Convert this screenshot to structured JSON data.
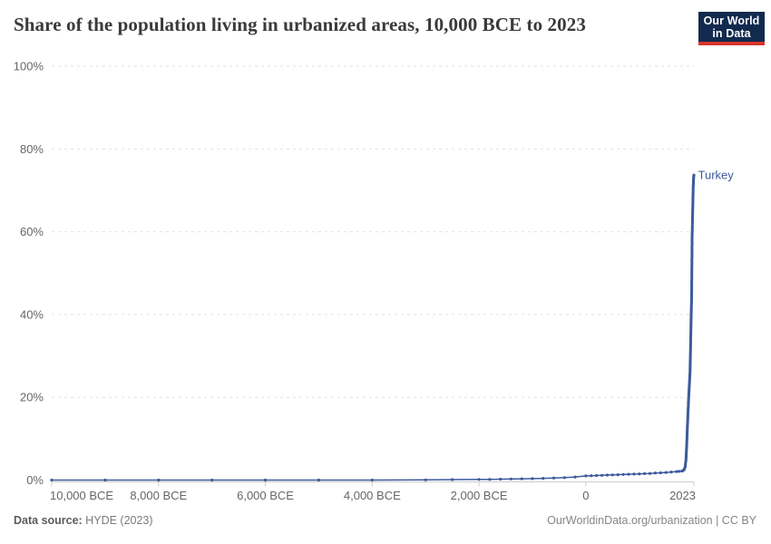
{
  "header": {
    "title": "Share of the population living in urbanized areas, 10,000 BCE to 2023",
    "logo": {
      "line1": "Our World",
      "line2": "in Data"
    }
  },
  "footer": {
    "source_label": "Data source:",
    "source_value": " HYDE (2023)",
    "right_text": "OurWorldinData.org/urbanization | CC BY"
  },
  "colors": {
    "series_blue": "#3d5a9c",
    "grid": "#e2e2e2",
    "axis_line": "#cccccc",
    "tick_text": "#666666",
    "logo_navy": "#132a4f",
    "logo_red": "#d8352a"
  },
  "chart_data": {
    "type": "line",
    "title": "Share of the population living in urbanized areas, 10,000 BCE to 2023",
    "xlabel": "",
    "ylabel": "",
    "xlim": [
      -10000,
      2023
    ],
    "ylim": [
      0,
      100
    ],
    "grid": "dashed-horizontal",
    "legend_position": "end-of-line-label",
    "x_ticks": [
      {
        "v": -10000,
        "label": "10,000 BCE"
      },
      {
        "v": -8000,
        "label": "8,000 BCE"
      },
      {
        "v": -6000,
        "label": "6,000 BCE"
      },
      {
        "v": -4000,
        "label": "4,000 BCE"
      },
      {
        "v": -2000,
        "label": "2,000 BCE"
      },
      {
        "v": 0,
        "label": "0"
      },
      {
        "v": 2023,
        "label": "2023"
      }
    ],
    "y_ticks": [
      {
        "v": 0,
        "label": "0%"
      },
      {
        "v": 20,
        "label": "20%"
      },
      {
        "v": 40,
        "label": "40%"
      },
      {
        "v": 60,
        "label": "60%"
      },
      {
        "v": 80,
        "label": "80%"
      },
      {
        "v": 100,
        "label": "100%"
      }
    ],
    "series": [
      {
        "name": "Turkey",
        "color": "#3d5a9c",
        "points": [
          [
            -10000,
            0
          ],
          [
            -9000,
            0
          ],
          [
            -8000,
            0
          ],
          [
            -7000,
            0
          ],
          [
            -6000,
            0
          ],
          [
            -5000,
            0
          ],
          [
            -4000,
            0
          ],
          [
            -3000,
            0.05
          ],
          [
            -2500,
            0.1
          ],
          [
            -2000,
            0.15
          ],
          [
            -1800,
            0.18
          ],
          [
            -1600,
            0.22
          ],
          [
            -1400,
            0.26
          ],
          [
            -1200,
            0.3
          ],
          [
            -1000,
            0.35
          ],
          [
            -800,
            0.42
          ],
          [
            -600,
            0.5
          ],
          [
            -400,
            0.6
          ],
          [
            -200,
            0.75
          ],
          [
            0,
            1.0
          ],
          [
            100,
            1.05
          ],
          [
            200,
            1.1
          ],
          [
            300,
            1.15
          ],
          [
            400,
            1.2
          ],
          [
            500,
            1.25
          ],
          [
            600,
            1.3
          ],
          [
            700,
            1.35
          ],
          [
            800,
            1.4
          ],
          [
            900,
            1.45
          ],
          [
            1000,
            1.5
          ],
          [
            1100,
            1.55
          ],
          [
            1200,
            1.6
          ],
          [
            1300,
            1.7
          ],
          [
            1400,
            1.75
          ],
          [
            1500,
            1.85
          ],
          [
            1600,
            1.95
          ],
          [
            1700,
            2.05
          ],
          [
            1750,
            2.1
          ],
          [
            1800,
            2.2
          ],
          [
            1820,
            2.3
          ],
          [
            1840,
            2.5
          ],
          [
            1860,
            3.2
          ],
          [
            1875,
            5.0
          ],
          [
            1890,
            9.0
          ],
          [
            1900,
            12.5
          ],
          [
            1910,
            15.5
          ],
          [
            1920,
            18.5
          ],
          [
            1930,
            21.0
          ],
          [
            1940,
            23.5
          ],
          [
            1950,
            26.0
          ],
          [
            1955,
            28.5
          ],
          [
            1960,
            31.5
          ],
          [
            1965,
            35.0
          ],
          [
            1970,
            38.4
          ],
          [
            1975,
            41.5
          ],
          [
            1980,
            43.8
          ],
          [
            1985,
            51.5
          ],
          [
            1990,
            59.2
          ],
          [
            1995,
            62.0
          ],
          [
            2000,
            64.7
          ],
          [
            2005,
            67.8
          ],
          [
            2010,
            70.8
          ],
          [
            2015,
            72.3
          ],
          [
            2020,
            73.3
          ],
          [
            2023,
            73.7
          ]
        ]
      }
    ]
  }
}
